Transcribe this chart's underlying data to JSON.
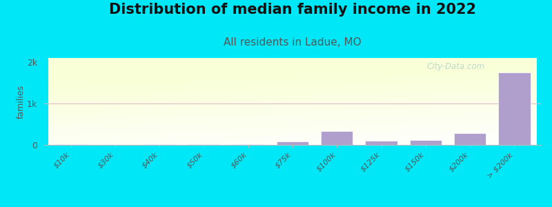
{
  "title": "Distribution of median family income in 2022",
  "subtitle": "All residents in Ladue, MO",
  "ylabel": "families",
  "categories": [
    "$10k",
    "$30k",
    "$40k",
    "$50k",
    "$60k",
    "$75k",
    "$100k",
    "$125k",
    "$150k",
    "$200k",
    "> $200k"
  ],
  "values": [
    20,
    5,
    15,
    10,
    15,
    85,
    330,
    100,
    110,
    290,
    1750
  ],
  "bar_color": "#b09fcc",
  "background_color": "#00e8f8",
  "yticks": [
    0,
    1000,
    2000
  ],
  "ytick_labels": [
    "0",
    "1k",
    "2k"
  ],
  "ylim": [
    0,
    2100
  ],
  "grid_color": "#ddb8c8",
  "title_fontsize": 15,
  "subtitle_fontsize": 11,
  "subtitle_color": "#555555",
  "watermark": "City-Data.com",
  "watermark_color": "#aacccc"
}
